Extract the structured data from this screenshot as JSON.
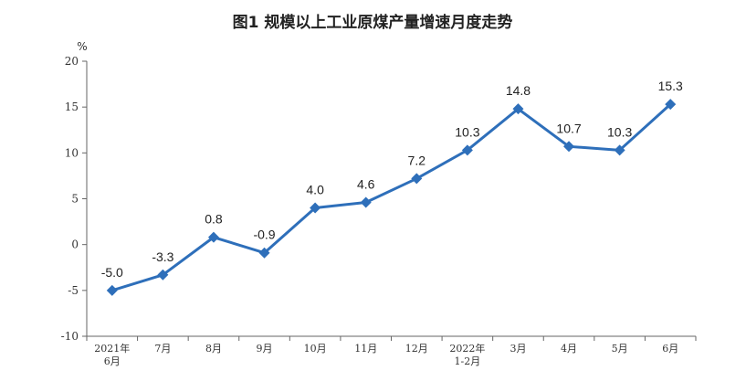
{
  "chart_data": {
    "type": "line",
    "title": "图1  规模以上工业原煤产量增速月度走势",
    "ylabel": "%",
    "xlabel": "",
    "ylim": [
      -10,
      20
    ],
    "yticks": [
      "20",
      "15",
      "10",
      "5",
      "0",
      "-5",
      "-10"
    ],
    "grid": false,
    "categories": [
      [
        "2021年",
        "6月"
      ],
      [
        "7月"
      ],
      [
        "8月"
      ],
      [
        "9月"
      ],
      [
        "10月"
      ],
      [
        "11月"
      ],
      [
        "12月"
      ],
      [
        "2022年",
        "1-2月"
      ],
      [
        "3月"
      ],
      [
        "4月"
      ],
      [
        "5月"
      ],
      [
        "6月"
      ]
    ],
    "values": [
      -5.0,
      -3.3,
      0.8,
      -0.9,
      4.0,
      4.6,
      7.2,
      10.3,
      14.8,
      10.7,
      10.3,
      15.3
    ],
    "labels": [
      "-5.0",
      "-3.3",
      "0.8",
      "-0.9",
      "4.0",
      "4.6",
      "7.2",
      "10.3",
      "14.8",
      "10.7",
      "10.3",
      "15.3"
    ],
    "series_color": "#2e6fba"
  }
}
